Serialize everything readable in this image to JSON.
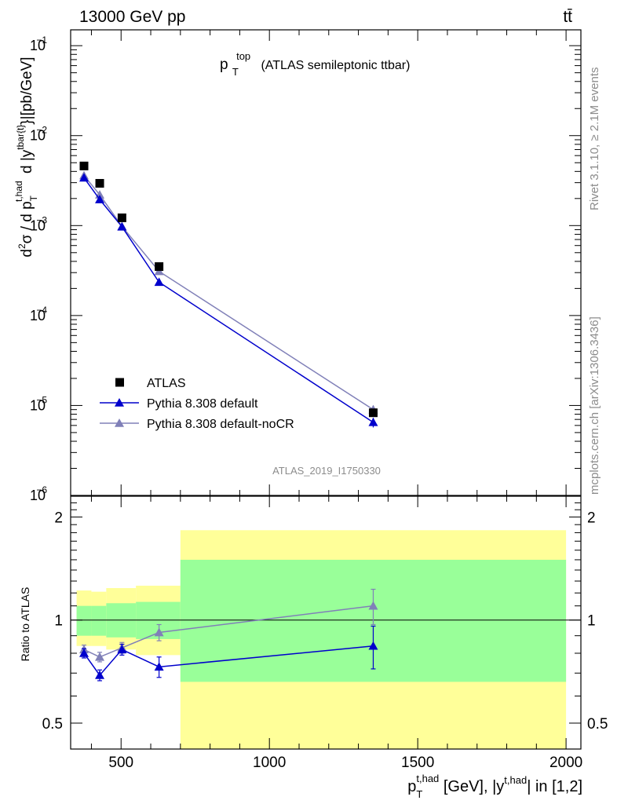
{
  "header": {
    "left": "13000 GeV pp",
    "right": "tt̄"
  },
  "side": {
    "rivet": "Rivet 3.1.10, ≥ 2.1M events",
    "mcplots": "mcplots.cern.ch [arXiv:1306.3436]"
  },
  "analysis_id": "ATLAS_2019_I1750330",
  "colors": {
    "data": "#000000",
    "default": "#0000cc",
    "nocr": "#8080b8",
    "band_outer": "#ffff99",
    "band_inner": "#99ff99"
  },
  "chart_data": [
    {
      "type": "scatter",
      "title_main": "p",
      "title_sup": "top",
      "title_sub": "T",
      "title_rest": "(ATLAS semileptonic ttbar)",
      "ylabel": "d²σ / d p_T^{t,had} d |y^{tbar{t}}|[pb/GeV]",
      "yscale": "log",
      "ylim": [
        1e-06,
        0.15
      ],
      "xlim": [
        330,
        2050
      ],
      "y_ticks": [
        {
          "v": 1e-06,
          "base": "10",
          "exp": "−6"
        },
        {
          "v": 1e-05,
          "base": "10",
          "exp": "−5"
        },
        {
          "v": 0.0001,
          "base": "10",
          "exp": "−4"
        },
        {
          "v": 0.001,
          "base": "10",
          "exp": "−3"
        },
        {
          "v": 0.01,
          "base": "10",
          "exp": "−2"
        },
        {
          "v": 0.1,
          "base": "10",
          "exp": "−1"
        }
      ],
      "legend_position": "bottom-left",
      "series": [
        {
          "name": "ATLAS",
          "marker": "square",
          "points": [
            {
              "x": 375,
              "y": 0.0046
            },
            {
              "x": 428,
              "y": 0.00295
            },
            {
              "x": 503,
              "y": 0.00122
            },
            {
              "x": 628,
              "y": 0.00035
            },
            {
              "x": 1350,
              "y": 8.3e-06
            }
          ]
        },
        {
          "name": "Pythia 8.308 default",
          "marker": "triangle",
          "points": [
            {
              "x": 375,
              "y": 0.0034,
              "err": 0.0001
            },
            {
              "x": 428,
              "y": 0.00195,
              "err": 7e-05
            },
            {
              "x": 503,
              "y": 0.00097,
              "err": 4e-05
            },
            {
              "x": 628,
              "y": 0.000235,
              "err": 1e-05
            },
            {
              "x": 1350,
              "y": 6.5e-06,
              "err": 8e-07
            }
          ]
        },
        {
          "name": "Pythia 8.308 default-noCR",
          "marker": "triangle",
          "points": [
            {
              "x": 375,
              "y": 0.0036,
              "err": 0.0001
            },
            {
              "x": 428,
              "y": 0.0022,
              "err": 7e-05
            },
            {
              "x": 503,
              "y": 0.00098,
              "err": 4e-05
            },
            {
              "x": 628,
              "y": 0.00031,
              "err": 1e-05
            },
            {
              "x": 1350,
              "y": 9e-06,
              "err": 1e-06
            }
          ]
        }
      ]
    },
    {
      "type": "scatter",
      "ylabel": "Ratio to ATLAS",
      "xlabel": "p_T^{t,had} [GeV], |y^{t,had}| in [1,2]",
      "yscale": "log",
      "ylim": [
        0.42,
        2.3
      ],
      "xlim": [
        330,
        2050
      ],
      "y_ticks": [
        0.5,
        1,
        2
      ],
      "y_tick_labels": [
        "0.5",
        "1",
        "2"
      ],
      "x_ticks": [
        500,
        1000,
        1500,
        2000
      ],
      "x_tick_labels": [
        "500",
        "1000",
        "1500",
        "2000"
      ],
      "bands": [
        {
          "x0": 350,
          "x1": 400,
          "outer": [
            0.84,
            1.22
          ],
          "inner": [
            0.9,
            1.1
          ]
        },
        {
          "x0": 400,
          "x1": 450,
          "outer": [
            0.84,
            1.21
          ],
          "inner": [
            0.9,
            1.1
          ]
        },
        {
          "x0": 450,
          "x1": 550,
          "outer": [
            0.82,
            1.24
          ],
          "inner": [
            0.89,
            1.12
          ]
        },
        {
          "x0": 550,
          "x1": 700,
          "outer": [
            0.79,
            1.26
          ],
          "inner": [
            0.88,
            1.13
          ]
        },
        {
          "x0": 700,
          "x1": 2000,
          "outer": [
            0.42,
            1.83
          ],
          "inner": [
            0.66,
            1.5
          ]
        }
      ],
      "series": [
        {
          "name": "Pythia 8.308 default",
          "points": [
            {
              "x": 375,
              "y": 0.8,
              "err": 0.025
            },
            {
              "x": 428,
              "y": 0.69,
              "err": 0.025
            },
            {
              "x": 503,
              "y": 0.82,
              "err": 0.03
            },
            {
              "x": 628,
              "y": 0.73,
              "err": 0.05
            },
            {
              "x": 1350,
              "y": 0.84,
              "err": 0.12
            }
          ]
        },
        {
          "name": "Pythia 8.308 default-noCR",
          "points": [
            {
              "x": 375,
              "y": 0.82,
              "err": 0.025
            },
            {
              "x": 428,
              "y": 0.78,
              "err": 0.025
            },
            {
              "x": 503,
              "y": 0.83,
              "err": 0.03
            },
            {
              "x": 628,
              "y": 0.92,
              "err": 0.05
            },
            {
              "x": 1350,
              "y": 1.1,
              "err": 0.13
            }
          ]
        }
      ]
    }
  ]
}
